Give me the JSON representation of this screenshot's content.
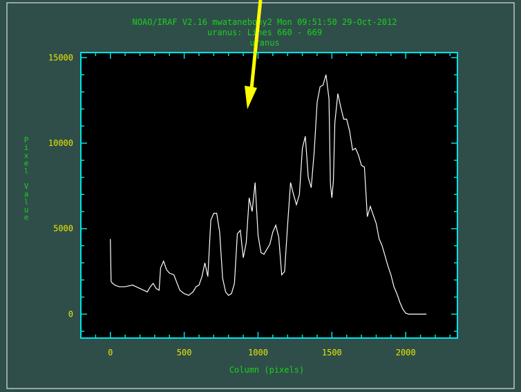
{
  "colors": {
    "background": "#2f4e4a",
    "plot_background": "#000000",
    "frame": "#00e5e5",
    "title_text": "#19d219",
    "tick_text": "#e8e800",
    "axis_label_text": "#19d219",
    "trace": "#ffffff",
    "arrow": "#ffff00"
  },
  "header": {
    "line1": "NOAO/IRAF V2.16 mwatanebony2 Mon 09:51:50 29-Oct-2012",
    "line2": "uranus: Lines 660 - 669",
    "line3": "uranus"
  },
  "annotation": {
    "arrow_icon": "yellow-arrow-icon"
  },
  "chart_data": {
    "type": "line",
    "title": "uranus",
    "xlabel": "Column (pixels)",
    "ylabel": "Pixel Value",
    "xlim": [
      -200,
      2350
    ],
    "ylim": [
      -1400,
      15300
    ],
    "xticks": [
      0,
      500,
      1000,
      1500,
      2000
    ],
    "yticks": [
      0,
      5000,
      10000,
      15000
    ],
    "grid": false,
    "series": [
      {
        "x": [
          0,
          5,
          15,
          30,
          60,
          100,
          150,
          200,
          250,
          270,
          290,
          310,
          330,
          340,
          360,
          380,
          400,
          430,
          470,
          500,
          530,
          560,
          580,
          600,
          620,
          640,
          660,
          680,
          700,
          720,
          740,
          760,
          780,
          800,
          820,
          840,
          860,
          880,
          900,
          920,
          940,
          960,
          980,
          1000,
          1020,
          1040,
          1060,
          1080,
          1100,
          1120,
          1140,
          1160,
          1180,
          1200,
          1220,
          1240,
          1260,
          1280,
          1300,
          1320,
          1340,
          1360,
          1380,
          1400,
          1420,
          1440,
          1460,
          1480,
          1490,
          1500,
          1510,
          1520,
          1540,
          1560,
          1580,
          1600,
          1620,
          1640,
          1660,
          1680,
          1700,
          1720,
          1740,
          1760,
          1780,
          1800,
          1820,
          1840,
          1860,
          1880,
          1900,
          1920,
          1940,
          1960,
          1980,
          2000,
          2020,
          2040,
          2050,
          2060,
          2070,
          2100,
          2140
        ],
        "y": [
          4400,
          1900,
          1800,
          1700,
          1600,
          1600,
          1700,
          1500,
          1300,
          1600,
          1800,
          1500,
          1400,
          2700,
          3100,
          2600,
          2400,
          2300,
          1400,
          1200,
          1100,
          1300,
          1600,
          1700,
          2200,
          3000,
          2200,
          5500,
          5900,
          5900,
          4800,
          2100,
          1300,
          1100,
          1200,
          1800,
          4700,
          4900,
          3300,
          4200,
          6800,
          6000,
          7700,
          4600,
          3600,
          3500,
          3800,
          4100,
          4800,
          5200,
          4500,
          2300,
          2500,
          5200,
          7700,
          7000,
          6400,
          7000,
          9700,
          10400,
          8000,
          7400,
          9500,
          12400,
          13300,
          13400,
          14000,
          12600,
          7600,
          6800,
          7800,
          11200,
          12900,
          12100,
          11400,
          11400,
          10700,
          9600,
          9700,
          9300,
          8700,
          8600,
          5700,
          6300,
          5800,
          5300,
          4400,
          4000,
          3400,
          2800,
          2300,
          1600,
          1200,
          700,
          300,
          50,
          0,
          0,
          0,
          0,
          0,
          0,
          0
        ]
      }
    ]
  }
}
